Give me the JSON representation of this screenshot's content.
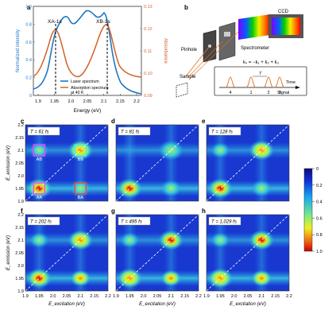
{
  "panel_a": {
    "letter": "a",
    "ylabel_left": "Normalized intensity",
    "ylabel_right": "Absorbance",
    "xlabel": "Energy (eV)",
    "left_ticks": [
      "0",
      "0.2",
      "0.4",
      "0.6",
      "0.8",
      "1.0"
    ],
    "right_ticks": [
      "0.09",
      "0.10",
      "0.11",
      "0.12",
      "0.13"
    ],
    "x_ticks": [
      "1.9",
      "1.95",
      "2.0",
      "2.05",
      "2.1",
      "2.15",
      "2.2"
    ],
    "marker_xa": "XA-1s",
    "marker_xb": "XB-1s",
    "legend_laser": "Laser spectrum",
    "legend_abs_line1": "Absorption spectrum",
    "legend_abs_line2": "at 40 K",
    "colors": {
      "laser": "#1f77c4",
      "absorption": "#d2622a"
    }
  },
  "panel_b": {
    "letter": "b",
    "ccd": "CCD",
    "spectrometer": "Spectrometer",
    "pinhole": "Pinhole",
    "sample": "Sample",
    "kvector": "kₛ = −k₁ + k₂ + k₃",
    "time": "Time",
    "signal": "Signal",
    "pulse_labels": [
      "4",
      "1",
      "2",
      "3"
    ],
    "T_label": "T",
    "tau_label": "t"
  },
  "maps": {
    "y_axis_label": "E_emission (eV)",
    "x_axis_label": "E_excitation (eV)",
    "y_ticks": [
      "2.2",
      "2.15",
      "2.1",
      "2.05",
      "2.0",
      "1.95",
      "1.9"
    ],
    "x_ticks": [
      "1.9",
      "1.95",
      "2.0",
      "2.05",
      "2.1",
      "2.15",
      "2.2"
    ],
    "panels": [
      {
        "letter": "c",
        "T": "T = 61 fs"
      },
      {
        "letter": "d",
        "T": "T = 81 fs"
      },
      {
        "letter": "e",
        "T": "T = 128 fs"
      },
      {
        "letter": "f",
        "T": "T = 202 fs"
      },
      {
        "letter": "g",
        "T": "T = 495 fs"
      },
      {
        "letter": "h",
        "T": "T = 1,029 fs"
      }
    ],
    "box_labels": {
      "AB": "AB",
      "BB": "BB",
      "AA": "AA",
      "BA": "BA"
    }
  },
  "colorbar": {
    "ticks": [
      "0",
      "0.2",
      "0.4",
      "0.6",
      "0.8",
      "1.0"
    ]
  }
}
